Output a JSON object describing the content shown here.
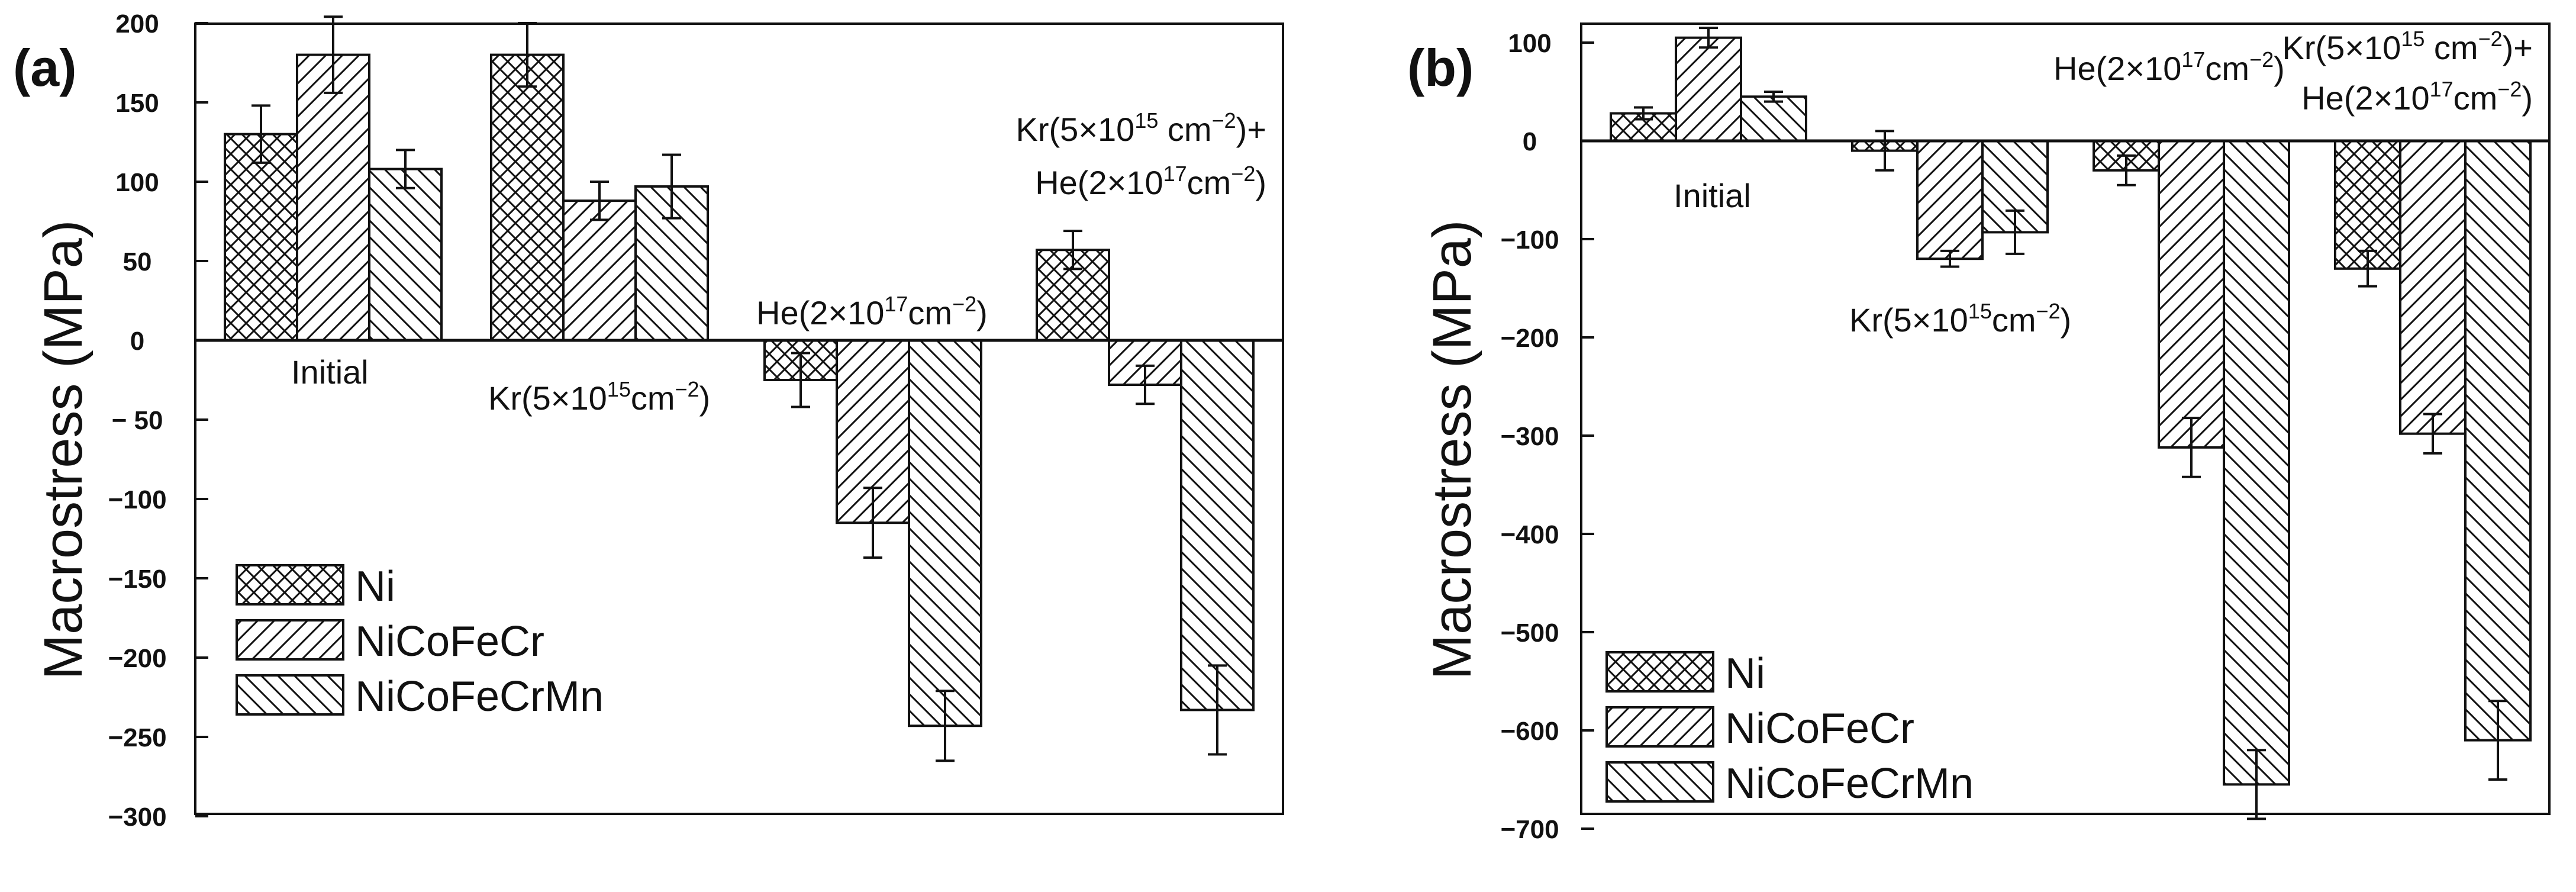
{
  "chart_data": [
    {
      "panel": "(a)",
      "type": "bar",
      "ylabel": "Macrostress (MPa)",
      "ylim": [
        -300,
        220
      ],
      "yticks": [
        200,
        150,
        100,
        50,
        0,
        -50,
        -100,
        -150,
        -200,
        -250,
        -300
      ],
      "ytick_labels": [
        "200",
        "150",
        "100",
        "50",
        "0",
        "− 50",
        "−100",
        "−150",
        "−200",
        "−250",
        "−300"
      ],
      "categories": [
        "Initial",
        "Kr(5×10^15cm^-2)",
        "He(2×10^17cm^-2)",
        "Kr(5×10^15 cm^-2)+He(2×10^17cm^-2)"
      ],
      "series": [
        {
          "name": "Ni",
          "values": [
            130,
            180,
            -25,
            57
          ],
          "errors": [
            18,
            20,
            17,
            12
          ]
        },
        {
          "name": "NiCoFeCr",
          "values": [
            180,
            88,
            -115,
            -28
          ],
          "errors": [
            24,
            12,
            22,
            12
          ]
        },
        {
          "name": "NiCoFeCrMn",
          "values": [
            108,
            97,
            -243,
            -233
          ],
          "errors": [
            12,
            20,
            22,
            28
          ]
        }
      ],
      "annotations": {
        "initial": "Initial",
        "kr_main": "Kr(5×10",
        "kr_exp": "15",
        "kr_unit": "cm",
        "kr_unit_exp": "−2",
        "kr_close": ")",
        "he_main": "He(2×10",
        "he_exp": "17",
        "he_unit": "cm",
        "he_unit_exp": "−2",
        "he_close": ")",
        "combo_l1_main": "Kr(5×10",
        "combo_l1_exp": "15",
        "combo_l1_unit": " cm",
        "combo_l1_unit_exp": "−2",
        "combo_l1_close": ")+",
        "combo_l2_main": "He(2×10",
        "combo_l2_exp": "17",
        "combo_l2_unit": "cm",
        "combo_l2_unit_exp": "−2",
        "combo_l2_close": ")"
      },
      "legend_position": "bottom-left"
    },
    {
      "panel": "(b)",
      "type": "bar",
      "ylabel": "Macrostress (MPa)",
      "ylim": [
        -700,
        120
      ],
      "yticks": [
        100,
        0,
        -100,
        -200,
        -300,
        -400,
        -500,
        -600,
        -700
      ],
      "ytick_labels": [
        "100",
        "0",
        "−100",
        "−200",
        "−300",
        "−400",
        "−500",
        "−600",
        "−700"
      ],
      "categories": [
        "Initial",
        "Kr(5×10^15cm^-2)",
        "He(2×10^17cm^-2)",
        "Kr(5×10^15 cm^-2)+He(2×10^17cm^-2)"
      ],
      "series": [
        {
          "name": "Ni",
          "values": [
            28,
            -10,
            -30,
            -130
          ],
          "errors": [
            6,
            20,
            15,
            18
          ]
        },
        {
          "name": "NiCoFeCr",
          "values": [
            105,
            -120,
            -312,
            -298
          ],
          "errors": [
            10,
            8,
            30,
            20
          ]
        },
        {
          "name": "NiCoFeCrMn",
          "values": [
            45,
            -93,
            -655,
            -610
          ],
          "errors": [
            5,
            22,
            35,
            40
          ]
        }
      ],
      "annotations": {
        "initial": "Initial",
        "kr_main": "Kr(5×10",
        "kr_exp": "15",
        "kr_unit": "cm",
        "kr_unit_exp": "−2",
        "kr_close": ")",
        "he_main": "He(2×10",
        "he_exp": "17",
        "he_unit": "cm",
        "he_unit_exp": "−2",
        "he_close": ")",
        "combo_l1_main": "Kr(5×10",
        "combo_l1_exp": "15",
        "combo_l1_unit": " cm",
        "combo_l1_unit_exp": "−2",
        "combo_l1_close": ")+",
        "combo_l2_main": "He(2×10",
        "combo_l2_exp": "17",
        "combo_l2_unit": "cm",
        "combo_l2_unit_exp": "−2",
        "combo_l2_close": ")"
      },
      "legend_position": "bottom-left"
    }
  ]
}
